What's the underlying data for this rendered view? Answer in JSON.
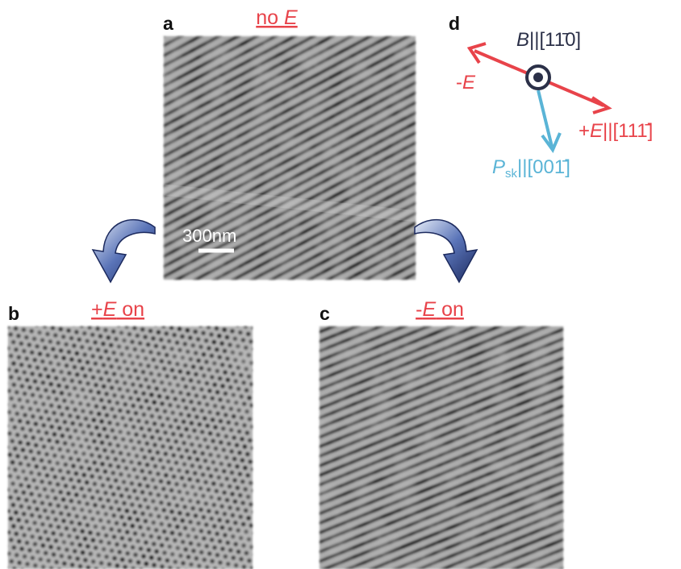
{
  "panels": {
    "a": {
      "label": "a",
      "title": [
        {
          "text": "no "
        },
        {
          "text": "E",
          "italic": true
        }
      ]
    },
    "b": {
      "label": "b",
      "title": [
        {
          "text": "+"
        },
        {
          "text": "E",
          "italic": true
        },
        {
          "text": " on"
        }
      ]
    },
    "c": {
      "label": "c",
      "title": [
        {
          "text": "-"
        },
        {
          "text": "E",
          "italic": true
        },
        {
          "text": " on"
        }
      ]
    }
  },
  "scale_bar": "300nm",
  "diagram": {
    "label": "d",
    "field": [
      {
        "text": "B",
        "italic": true
      },
      {
        "text": "||[11̄0]"
      }
    ],
    "minus": [
      {
        "text": "-"
      },
      {
        "text": "E",
        "italic": true
      }
    ],
    "plus": [
      {
        "text": "+"
      },
      {
        "text": "E",
        "italic": true
      },
      {
        "text": "||[111̄]"
      }
    ],
    "polarization": [
      {
        "text": "P",
        "italic": true
      },
      {
        "text": "sk",
        "sub": true
      },
      {
        "text": "||[001̄]"
      }
    ]
  }
}
